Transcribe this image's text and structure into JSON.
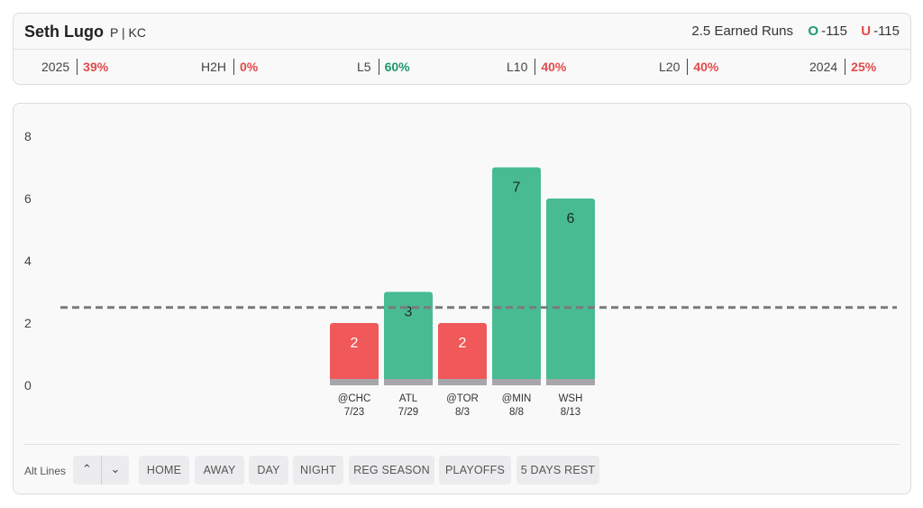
{
  "player": {
    "name": "Seth Lugo",
    "meta": "P | KC"
  },
  "prop": {
    "label": "2.5 Earned Runs",
    "over_tag": "O",
    "over_odds": "-115",
    "under_tag": "U",
    "under_odds": "-115"
  },
  "stats": [
    {
      "label": "2025",
      "value": "39%",
      "status": "red"
    },
    {
      "label": "H2H",
      "value": "0%",
      "status": "red"
    },
    {
      "label": "L5",
      "value": "60%",
      "status": "green"
    },
    {
      "label": "L10",
      "value": "40%",
      "status": "red"
    },
    {
      "label": "L20",
      "value": "40%",
      "status": "red"
    },
    {
      "label": "2024",
      "value": "25%",
      "status": "red"
    }
  ],
  "colors": {
    "over": "#48bb92",
    "under": "#f0585a",
    "base": "#a7a7ab",
    "line": "#7a7a7a"
  },
  "chart_data": {
    "type": "bar",
    "categories": [
      "@CHC",
      "ATL",
      "@TOR",
      "@MIN",
      "WSH"
    ],
    "dates": [
      "7/23",
      "7/29",
      "8/3",
      "8/8",
      "8/13"
    ],
    "values": [
      2,
      3,
      2,
      7,
      6
    ],
    "threshold": 2.5,
    "ylim": [
      0,
      8
    ],
    "yticks": [
      0,
      2,
      4,
      6,
      8
    ],
    "grid": false,
    "xlabel": "",
    "ylabel": ""
  },
  "filters": {
    "alt_lines_label": "Alt Lines",
    "up_icon": "chevron-up-icon",
    "down_icon": "chevron-down-icon",
    "chips": [
      "HOME",
      "AWAY",
      "DAY",
      "NIGHT",
      "REG SEASON",
      "PLAYOFFS",
      "5 DAYS REST"
    ]
  }
}
